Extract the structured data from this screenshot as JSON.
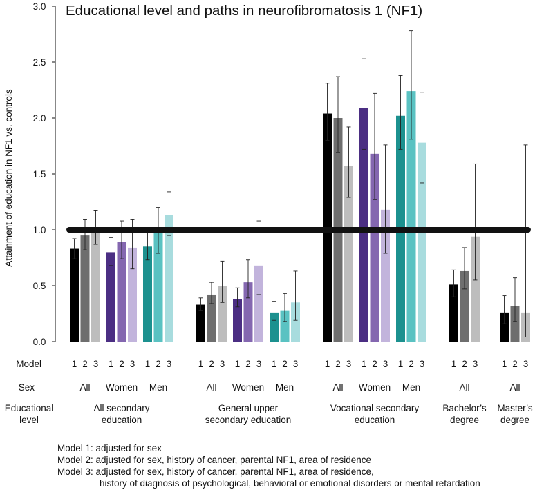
{
  "chart_data": {
    "type": "bar",
    "title": "Educational level and paths in neurofibromatosis 1 (NF1)",
    "ylabel": "Attainment of education in NF1 vs. controls",
    "ylim": [
      0,
      3.0
    ],
    "yticks": [
      "0.0",
      "0.5",
      "1.0",
      "1.5",
      "2.0",
      "2.5",
      "3.0"
    ],
    "reference_line": 1.0,
    "row_labels": {
      "model": "Model",
      "sex": "Sex",
      "level": "Educational level"
    },
    "groups": [
      {
        "level": "All secondary education",
        "sex": "All",
        "palette": "gray",
        "bars": [
          {
            "model": "1",
            "value": 0.83,
            "lo": 0.74,
            "hi": 0.92
          },
          {
            "model": "2",
            "value": 0.95,
            "lo": 0.82,
            "hi": 1.09
          },
          {
            "model": "3",
            "value": 1.0,
            "lo": 0.87,
            "hi": 1.17
          }
        ]
      },
      {
        "level": "All secondary education",
        "sex": "Women",
        "palette": "purple",
        "bars": [
          {
            "model": "1",
            "value": 0.8,
            "lo": 0.68,
            "hi": 0.93
          },
          {
            "model": "2",
            "value": 0.89,
            "lo": 0.74,
            "hi": 1.08
          },
          {
            "model": "3",
            "value": 0.84,
            "lo": 0.65,
            "hi": 1.09
          }
        ]
      },
      {
        "level": "All secondary education",
        "sex": "Men",
        "palette": "teal",
        "bars": [
          {
            "model": "1",
            "value": 0.85,
            "lo": 0.73,
            "hi": 0.99
          },
          {
            "model": "2",
            "value": 0.98,
            "lo": 0.79,
            "hi": 1.2
          },
          {
            "model": "3",
            "value": 1.13,
            "lo": 0.95,
            "hi": 1.34
          }
        ]
      },
      {
        "level": "General upper secondary education",
        "sex": "All",
        "palette": "gray",
        "bars": [
          {
            "model": "1",
            "value": 0.33,
            "lo": 0.28,
            "hi": 0.39
          },
          {
            "model": "2",
            "value": 0.42,
            "lo": 0.34,
            "hi": 0.53
          },
          {
            "model": "3",
            "value": 0.5,
            "lo": 0.35,
            "hi": 0.72
          }
        ]
      },
      {
        "level": "General upper secondary education",
        "sex": "Women",
        "palette": "purple",
        "bars": [
          {
            "model": "1",
            "value": 0.38,
            "lo": 0.31,
            "hi": 0.48
          },
          {
            "model": "2",
            "value": 0.53,
            "lo": 0.39,
            "hi": 0.73
          },
          {
            "model": "3",
            "value": 0.68,
            "lo": 0.42,
            "hi": 1.08
          }
        ]
      },
      {
        "level": "General upper secondary education",
        "sex": "Men",
        "palette": "teal",
        "bars": [
          {
            "model": "1",
            "value": 0.26,
            "lo": 0.19,
            "hi": 0.36
          },
          {
            "model": "2",
            "value": 0.28,
            "lo": 0.18,
            "hi": 0.43
          },
          {
            "model": "3",
            "value": 0.35,
            "lo": 0.19,
            "hi": 0.63
          }
        ]
      },
      {
        "level": "Vocational secondary education",
        "sex": "All",
        "palette": "gray",
        "bars": [
          {
            "model": "1",
            "value": 2.04,
            "lo": 1.8,
            "hi": 2.31
          },
          {
            "model": "2",
            "value": 2.0,
            "lo": 1.69,
            "hi": 2.37
          },
          {
            "model": "3",
            "value": 1.57,
            "lo": 1.29,
            "hi": 1.92
          }
        ]
      },
      {
        "level": "Vocational secondary education",
        "sex": "Women",
        "palette": "purple",
        "bars": [
          {
            "model": "1",
            "value": 2.09,
            "lo": 1.72,
            "hi": 2.53
          },
          {
            "model": "2",
            "value": 1.68,
            "lo": 1.27,
            "hi": 2.22
          },
          {
            "model": "3",
            "value": 1.18,
            "lo": 0.79,
            "hi": 1.76
          }
        ]
      },
      {
        "level": "Vocational secondary education",
        "sex": "Men",
        "palette": "teal",
        "bars": [
          {
            "model": "1",
            "value": 2.02,
            "lo": 1.72,
            "hi": 2.38
          },
          {
            "model": "2",
            "value": 2.24,
            "lo": 1.81,
            "hi": 2.78
          },
          {
            "model": "3",
            "value": 1.78,
            "lo": 1.42,
            "hi": 2.23
          }
        ]
      },
      {
        "level": "Bachelor’s degree",
        "sex": "All",
        "palette": "gray",
        "bars": [
          {
            "model": "1",
            "value": 0.51,
            "lo": 0.4,
            "hi": 0.64
          },
          {
            "model": "2",
            "value": 0.63,
            "lo": 0.47,
            "hi": 0.84
          },
          {
            "model": "3",
            "value": 0.94,
            "lo": 0.55,
            "hi": 1.59
          }
        ]
      },
      {
        "level": "Master’s degree",
        "sex": "All",
        "palette": "gray",
        "bars": [
          {
            "model": "1",
            "value": 0.26,
            "lo": 0.16,
            "hi": 0.41
          },
          {
            "model": "2",
            "value": 0.32,
            "lo": 0.18,
            "hi": 0.57
          },
          {
            "model": "3",
            "value": 0.26,
            "lo": 0.04,
            "hi": 1.76
          }
        ]
      }
    ],
    "palettes": {
      "gray": [
        "#000000",
        "#6e6e6e",
        "#bdbdbd"
      ],
      "purple": [
        "#4b2e83",
        "#8467b0",
        "#c2b4dc"
      ],
      "teal": [
        "#1c918f",
        "#5ac2c2",
        "#a8dcde"
      ]
    }
  },
  "notes": [
    "Model 1: adjusted for sex",
    "Model 2: adjusted for sex, history of cancer, parental NF1, area of residence",
    "Model 3: adjusted for sex, history of cancer, parental NF1, area of residence,",
    "history of diagnosis of psychological, behavioral or emotional disorders or mental retardation"
  ]
}
